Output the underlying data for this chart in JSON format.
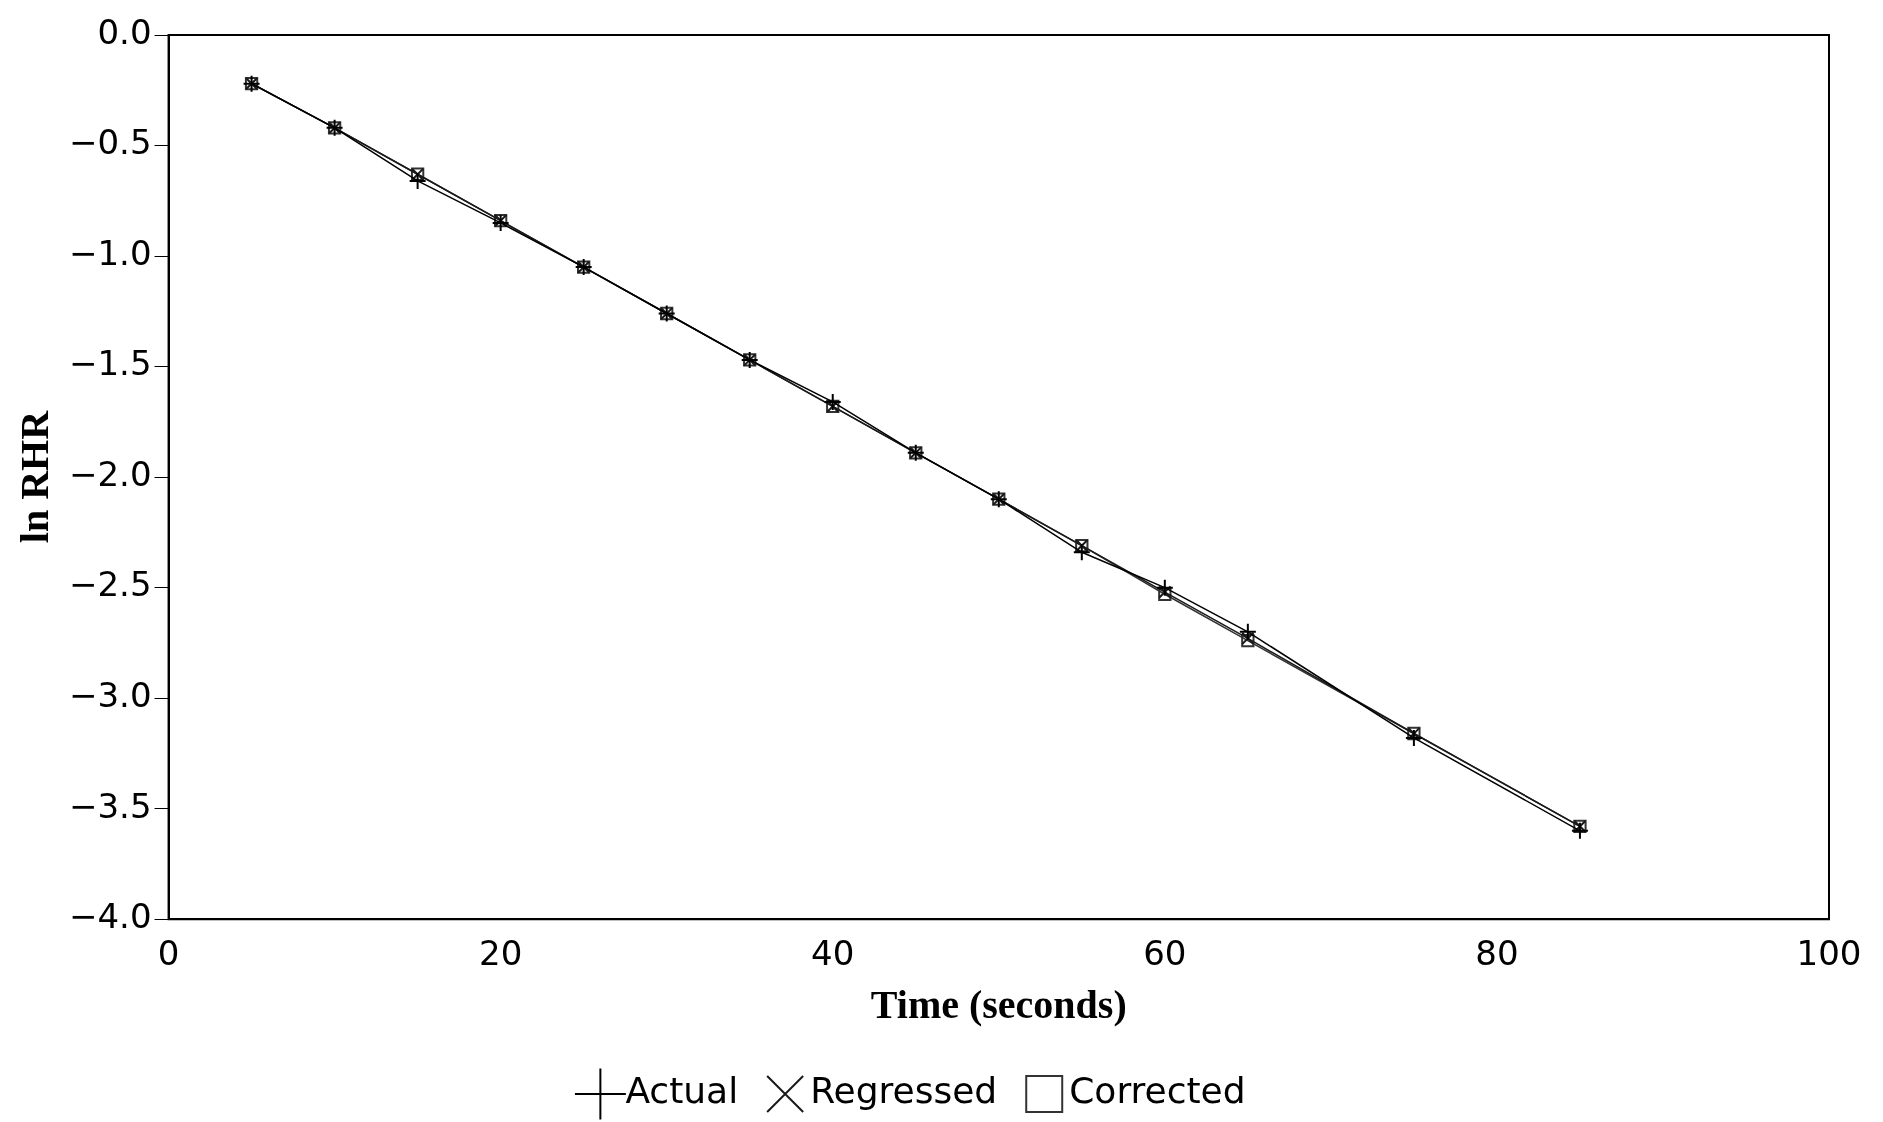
{
  "chart_data": {
    "type": "line",
    "xlabel": "Time (seconds)",
    "ylabel": "ln RHR",
    "xlim": [
      0,
      100
    ],
    "xticks": [
      0,
      20,
      40,
      60,
      80,
      100
    ],
    "ylim": [
      -4,
      0
    ],
    "yticks": [
      {
        "value": 0,
        "label": "0.0"
      },
      {
        "value": -0.5,
        "label": "−0.5"
      },
      {
        "value": -1,
        "label": "−1.0"
      },
      {
        "value": -1.5,
        "label": "−1.5"
      },
      {
        "value": -2,
        "label": "−2.0"
      },
      {
        "value": -2.5,
        "label": "−2.5"
      },
      {
        "value": -3,
        "label": "−3.0"
      },
      {
        "value": -3.5,
        "label": "−3.5"
      },
      {
        "value": -4,
        "label": "−4.0"
      }
    ],
    "x": [
      5,
      10,
      15,
      20,
      25,
      30,
      35,
      40,
      45,
      50,
      55,
      60,
      65,
      75,
      85
    ],
    "grid": false,
    "legend": "bottom",
    "line_style": "solid",
    "series": [
      {
        "name": "Actual",
        "color": "#000000",
        "marker": "cross",
        "values": [
          -0.22,
          -0.42,
          -0.66,
          -0.85,
          -1.05,
          -1.26,
          -1.47,
          -1.66,
          -1.89,
          -2.1,
          -2.34,
          -2.5,
          -2.7,
          -3.18,
          -3.6
        ]
      },
      {
        "name": "Regressed",
        "color": "#1a1a1a",
        "marker": "x",
        "values": [
          -0.22,
          -0.42,
          -0.63,
          -0.84,
          -1.05,
          -1.26,
          -1.47,
          -1.68,
          -1.89,
          -2.1,
          -2.31,
          -2.52,
          -2.73,
          -3.16,
          -3.58
        ]
      },
      {
        "name": "Corrected",
        "color": "#333333",
        "marker": "square",
        "values": [
          -0.22,
          -0.42,
          -0.63,
          -0.84,
          -1.05,
          -1.26,
          -1.47,
          -1.68,
          -1.89,
          -2.1,
          -2.31,
          -2.53,
          -2.74,
          -3.16,
          -3.58
        ]
      }
    ]
  }
}
